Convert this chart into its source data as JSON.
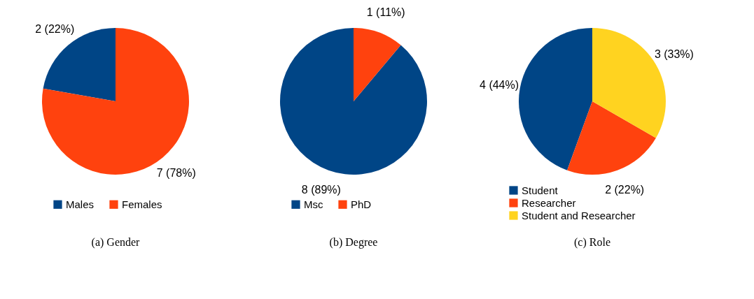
{
  "chart_data": [
    {
      "type": "pie",
      "title": "(a) Gender",
      "categories": [
        "Males",
        "Females"
      ],
      "values": [
        2,
        7
      ],
      "colors": [
        "#004586",
        "#ff420e"
      ],
      "value_labels": [
        "2 (22%)",
        "7 (78%)"
      ],
      "legend": "bottom"
    },
    {
      "type": "pie",
      "title": "(b) Degree",
      "categories": [
        "Msc",
        "PhD"
      ],
      "values": [
        8,
        1
      ],
      "colors": [
        "#004586",
        "#ff420e"
      ],
      "value_labels": [
        "8 (89%)",
        "1 (11%)"
      ],
      "legend": "bottom"
    },
    {
      "type": "pie",
      "title": "(c) Role",
      "categories": [
        "Student",
        "Researcher",
        "Student and Researcher"
      ],
      "values": [
        4,
        2,
        3
      ],
      "colors": [
        "#004586",
        "#ff420e",
        "#ffd320"
      ],
      "value_labels": [
        "4 (44%)",
        "2 (22%)",
        "3 (33%)"
      ],
      "legend": "bottom left"
    }
  ]
}
